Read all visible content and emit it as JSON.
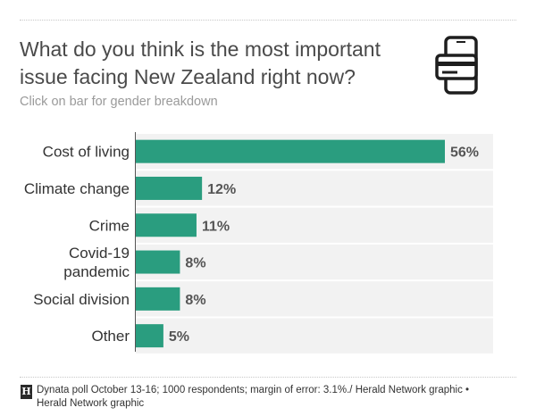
{
  "header": {
    "title": "What do you think is the most important issue facing New Zealand right now?",
    "subtitle": "Click on bar for gender breakdown"
  },
  "footer": {
    "logo_letter": "H",
    "source": "Dynata poll October 13-16; 1000 respondents; margin of error: 3.1%./ Herald Network graphic • Herald Network graphic"
  },
  "icon": {
    "name": "phone-card-icon"
  },
  "colors": {
    "bar": "#2a9d7f",
    "track": "#f2f2f2",
    "label": "#333333",
    "value": "#555555"
  },
  "chart_data": {
    "type": "bar",
    "orientation": "horizontal",
    "categories": [
      "Cost of living",
      "Climate change",
      "Crime",
      "Covid-19 pandemic",
      "Social division",
      "Other"
    ],
    "category_lines": [
      [
        "Cost of living"
      ],
      [
        "Climate change"
      ],
      [
        "Crime"
      ],
      [
        "Covid-19",
        "pandemic"
      ],
      [
        "Social division"
      ],
      [
        "Other"
      ]
    ],
    "values": [
      56,
      12,
      11,
      8,
      8,
      5
    ],
    "value_labels": [
      "56%",
      "12%",
      "11%",
      "8%",
      "8%",
      "5%"
    ],
    "xlim": [
      0,
      56
    ],
    "grid": false
  }
}
